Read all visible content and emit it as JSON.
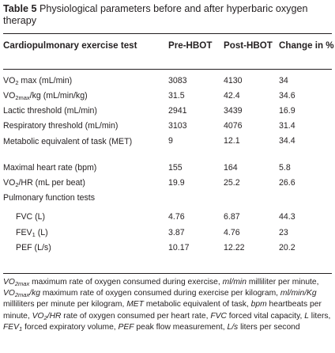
{
  "caption": {
    "label": "Table 5",
    "text": "Physiological parameters before and after hyperbaric oxygen therapy"
  },
  "headers": {
    "test": "Cardiopulmonary exercise test",
    "pre": "Pre-HBOT",
    "post": "Post-HBOT",
    "change": "Change in %"
  },
  "rows": [
    {
      "label": "VO2 max (mL/min)",
      "pre": "3083",
      "post": "4130",
      "change": "34"
    },
    {
      "label": "VO2max/kg (mL/min/kg)",
      "pre": "31.5",
      "post": "42.4",
      "change": "34.6"
    },
    {
      "label": "Lactic threshold (mL/min)",
      "pre": "2941",
      "post": "3439",
      "change": "16.9"
    },
    {
      "label": "Respiratory threshold (mL/min)",
      "pre": "3103",
      "post": "4076",
      "change": "31.4"
    },
    {
      "label": "Metabolic equivalent of task (MET)",
      "pre": "9",
      "post": "12.1",
      "change": "34.4"
    },
    {
      "label": "Maximal heart rate (bpm)",
      "pre": "155",
      "post": "164",
      "change": "5.8"
    },
    {
      "label": "VO2/HR (mL per beat)",
      "pre": "19.9",
      "post": "25.2",
      "change": "26.6"
    },
    {
      "label": "Pulmonary function tests",
      "pre": "",
      "post": "",
      "change": ""
    },
    {
      "label": "FVC (L)",
      "pre": "4.76",
      "post": "6.87",
      "change": "44.3"
    },
    {
      "label": "FEV1 (L)",
      "pre": "3.87",
      "post": "4.76",
      "change": "23"
    },
    {
      "label": "PEF (L/s)",
      "pre": "10.17",
      "post": "12.22",
      "change": "20.2"
    }
  ],
  "footnote": [
    {
      "t": "VO2max",
      "i": true
    },
    {
      "t": " maximum rate of oxygen consumed during exercise, ",
      "i": false
    },
    {
      "t": "ml/min",
      "i": true
    },
    {
      "t": " milliliter per minute, ",
      "i": false
    },
    {
      "t": "VO2max/kg",
      "i": true
    },
    {
      "t": " maximum rate of oxygen consumed during exercise per kilogram, ",
      "i": false
    },
    {
      "t": "ml/min/Kg",
      "i": true
    },
    {
      "t": " milliliters per minute per kilogram, ",
      "i": false
    },
    {
      "t": "MET",
      "i": true
    },
    {
      "t": " metabolic equivalent of task, ",
      "i": false
    },
    {
      "t": "bpm",
      "i": true
    },
    {
      "t": " heartbeats per minute, ",
      "i": false
    },
    {
      "t": "VO2/HR",
      "i": true
    },
    {
      "t": " rate of oxygen consumed per heart rate, ",
      "i": false
    },
    {
      "t": "FVC",
      "i": true
    },
    {
      "t": " forced vital capacity, ",
      "i": false
    },
    {
      "t": "L",
      "i": true
    },
    {
      "t": " liters, ",
      "i": false
    },
    {
      "t": "FEV1",
      "i": true
    },
    {
      "t": " forced expiratory volume, ",
      "i": false
    },
    {
      "t": "PEF",
      "i": true
    },
    {
      "t": " peak flow measurement, ",
      "i": false
    },
    {
      "t": "L/s",
      "i": true
    },
    {
      "t": " liters per second",
      "i": false
    }
  ]
}
